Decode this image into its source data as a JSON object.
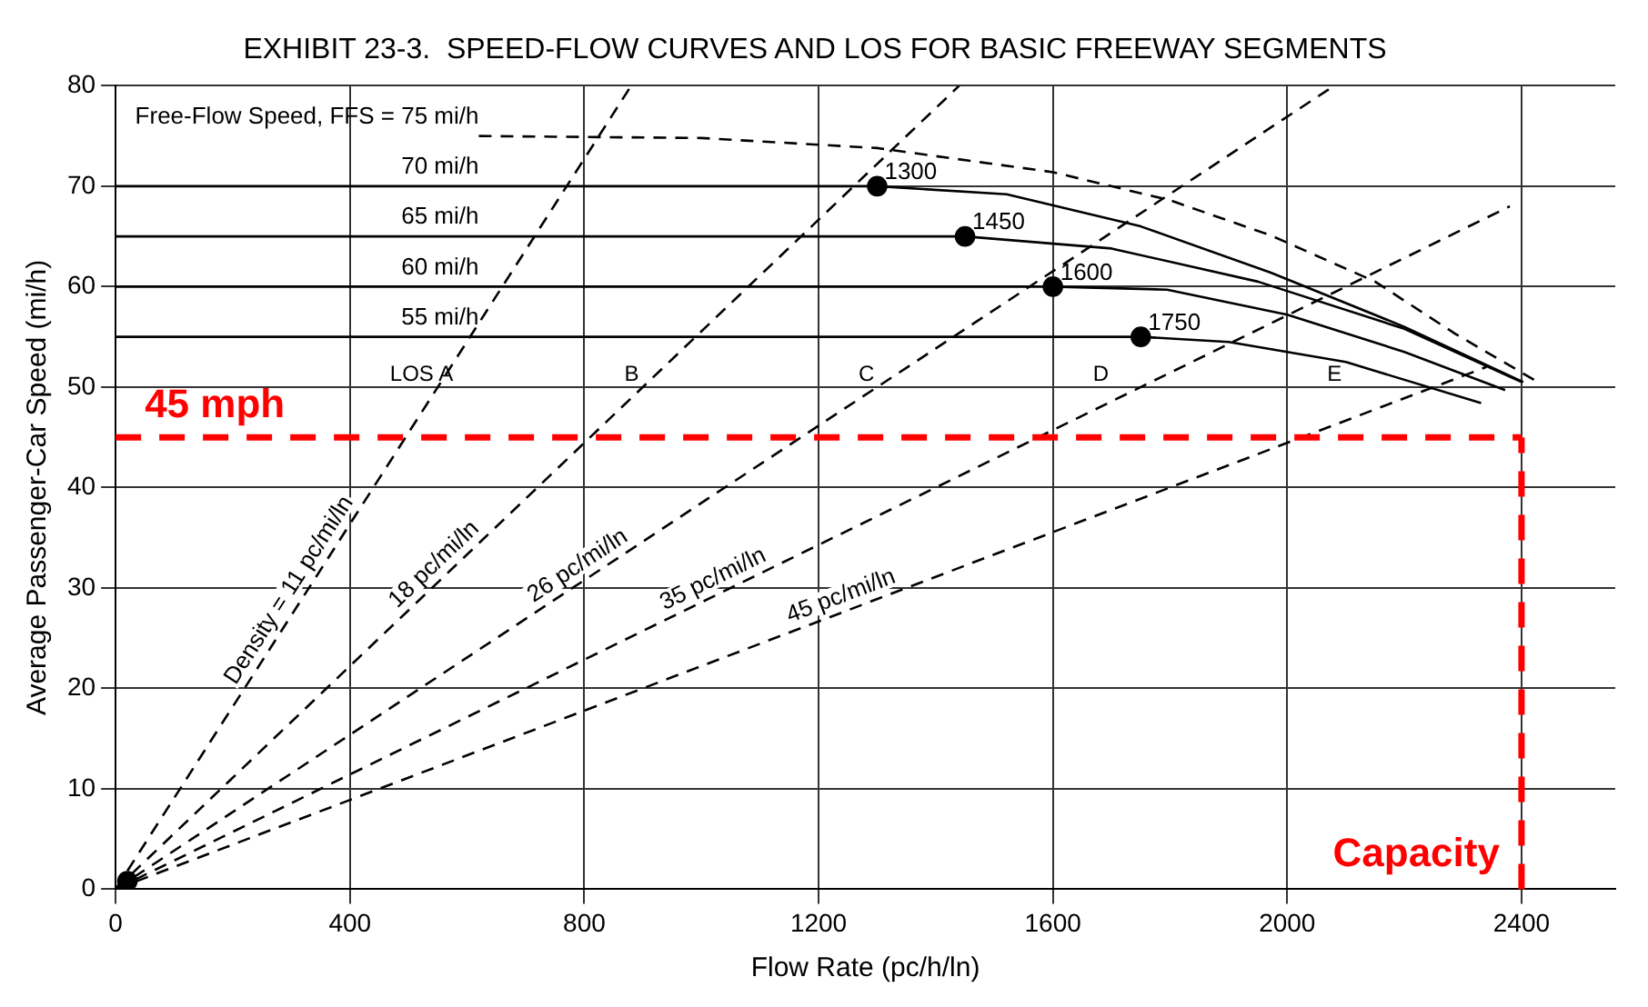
{
  "chart_data": {
    "type": "line",
    "title": "EXHIBIT 23-3.  SPEED-FLOW CURVES AND LOS FOR BASIC FREEWAY SEGMENTS",
    "xlabel": "Flow Rate (pc/h/ln)",
    "ylabel": "Average Passenger-Car Speed (mi/h)",
    "xlim": [
      0,
      2560
    ],
    "xticks": [
      0,
      400,
      800,
      1200,
      1600,
      2000,
      2400
    ],
    "ylim": [
      0,
      80
    ],
    "yticks": [
      0,
      10,
      20,
      30,
      40,
      50,
      60,
      70,
      80
    ],
    "grid": true,
    "legend": false,
    "series": [
      {
        "name": "Free-Flow Speed, FFS = 75 mi/h",
        "color": "#000000",
        "line_style": "dashed",
        "marker": "none",
        "x": [
          620,
          1000,
          1300,
          1600,
          1800,
          1972,
          2150,
          2287,
          2425
        ],
        "values": [
          75,
          74.8,
          73.8,
          71.4,
          68.6,
          65.1,
          60.5,
          55.3,
          50.6
        ]
      },
      {
        "name": "70 mi/h",
        "color": "#000000",
        "line_style": "solid",
        "marker": "none",
        "x": [
          0,
          1300,
          1521,
          1750,
          1972,
          2200,
          2403
        ],
        "values": [
          70,
          70,
          69.2,
          66,
          61.4,
          56,
          50.5
        ]
      },
      {
        "name": "65 mi/h",
        "color": "#000000",
        "line_style": "solid",
        "marker": "none",
        "x": [
          0,
          1450,
          1700,
          1950,
          2200,
          2400
        ],
        "values": [
          65,
          65,
          63.8,
          60.5,
          55.8,
          50.5
        ]
      },
      {
        "name": "60 mi/h",
        "color": "#000000",
        "line_style": "solid",
        "marker": "none",
        "x": [
          0,
          1600,
          1795,
          2000,
          2200,
          2372
        ],
        "values": [
          60,
          60,
          59.7,
          57.2,
          53.5,
          49.7
        ]
      },
      {
        "name": "55 mi/h",
        "color": "#000000",
        "line_style": "solid",
        "marker": "none",
        "x": [
          0,
          1750,
          1900,
          2100,
          2331
        ],
        "values": [
          55,
          55,
          54.5,
          52.5,
          48.4
        ]
      },
      {
        "name": "Density = 11 pc/mi/ln",
        "color": "#000000",
        "line_style": "dashed",
        "marker": "none",
        "x": [
          0,
          880
        ],
        "values": [
          0,
          80
        ]
      },
      {
        "name": "18 pc/mi/ln",
        "color": "#000000",
        "line_style": "dashed",
        "marker": "none",
        "x": [
          0,
          1440
        ],
        "values": [
          0,
          80
        ]
      },
      {
        "name": "26 pc/mi/ln",
        "color": "#000000",
        "line_style": "dashed",
        "marker": "none",
        "x": [
          0,
          2080
        ],
        "values": [
          0,
          80
        ]
      },
      {
        "name": "35 pc/mi/ln",
        "color": "#000000",
        "line_style": "dashed",
        "marker": "none",
        "x": [
          0,
          2380
        ],
        "values": [
          0,
          68
        ]
      },
      {
        "name": "45 pc/mi/ln",
        "color": "#000000",
        "line_style": "dashed",
        "marker": "none",
        "x": [
          0,
          2340
        ],
        "values": [
          0,
          52
        ]
      },
      {
        "type": "scatter",
        "color": "#000000",
        "marker": "circle",
        "x": [
          20,
          1300,
          1450,
          1600,
          1750
        ],
        "values": [
          0.8,
          70,
          65,
          60,
          55
        ]
      }
    ],
    "annotations": [
      {
        "text": "1300",
        "x": 1300,
        "y": 70
      },
      {
        "text": "1450",
        "x": 1450,
        "y": 65
      },
      {
        "text": "1600",
        "x": 1600,
        "y": 60
      },
      {
        "text": "1750",
        "x": 1750,
        "y": 55
      },
      "LOS A",
      "B",
      "C",
      "D",
      "E"
    ],
    "ref_lines": [
      {
        "axis": "y",
        "value": 45,
        "label": "45 mph",
        "color": "#ff0000",
        "line_style": "dashed"
      },
      {
        "axis": "x",
        "value": 2400,
        "label": "Capacity",
        "color": "#ff0000",
        "line_style": "dashed"
      }
    ]
  }
}
